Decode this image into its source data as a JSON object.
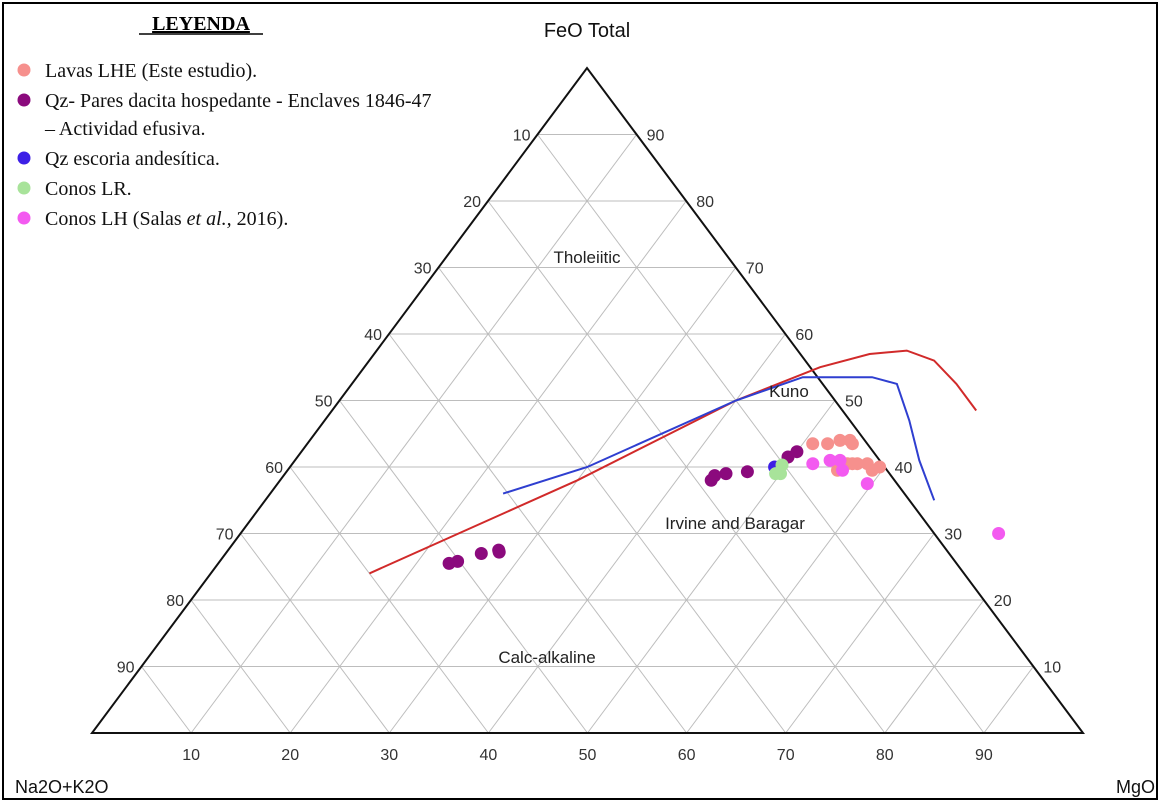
{
  "chart_data": {
    "type": "scatter",
    "subtype": "ternary-AFM",
    "apices": {
      "top": "FeO Total",
      "left": "Na2O+K2O",
      "right": "MgO"
    },
    "ticks": {
      "bottom": [
        "10",
        "20",
        "30",
        "40",
        "50",
        "60",
        "70",
        "80",
        "90"
      ],
      "left": [
        "10",
        "20",
        "30",
        "40",
        "50",
        "60",
        "70",
        "80",
        "90"
      ],
      "right": [
        "90",
        "80",
        "70",
        "60",
        "50",
        "40",
        "30",
        "20",
        "10"
      ]
    },
    "grid": true,
    "legend_position": "top-left",
    "legend": {
      "title": "LEYENDA",
      "entries": [
        {
          "label": "Lavas LHE (Este estudio).",
          "color": "#f6908d"
        },
        {
          "label": "Qz- Pares dacita hospedante - Enclaves 1846-47",
          "label2": "– Actividad efusiva.",
          "color": "#8b0a7d"
        },
        {
          "label": "Qz escoria andesítica.",
          "color": "#3d1fe6"
        },
        {
          "label": "Conos LR.",
          "color": "#a8e39a"
        },
        {
          "label_prefix": "Conos LH (Salas ",
          "label_italic": "et al.,",
          "label_suffix": " 2016).",
          "color": "#f35af0"
        }
      ]
    },
    "region_labels": [
      "Tholeiitic",
      "Calc-alkaline",
      "Kuno",
      "Irvine and Baragar"
    ],
    "boundaries": [
      {
        "name": "Kuno",
        "color": "#d12a2a",
        "points": [
          [
            16,
            24
          ],
          [
            30,
            38
          ],
          [
            40,
            50
          ],
          [
            46,
            55
          ],
          [
            50,
            57
          ],
          [
            53.5,
            57.5
          ],
          [
            57,
            56
          ],
          [
            61,
            52.5
          ],
          [
            65,
            48.5
          ]
        ]
      },
      {
        "name": "Irvine and Baragar",
        "color": "#2f3fd0",
        "points": [
          [
            23.5,
            36
          ],
          [
            30,
            40
          ],
          [
            40,
            50
          ],
          [
            45,
            53.5
          ],
          [
            52,
            53.5
          ],
          [
            55,
            52.5
          ],
          [
            59,
            47
          ],
          [
            63,
            41
          ],
          [
            67.5,
            35
          ]
        ]
      }
    ],
    "series": [
      {
        "color": "#f6908d",
        "points": [
          [
            51,
            43.5
          ],
          [
            52.5,
            43.5
          ],
          [
            53.5,
            44
          ],
          [
            54.5,
            44
          ],
          [
            55,
            43.5
          ],
          [
            56,
            40.5
          ],
          [
            57,
            40.5
          ],
          [
            58,
            40.5
          ],
          [
            59.5,
            40
          ],
          [
            59,
            39.5
          ],
          [
            55.5,
            39.5
          ],
          [
            56.5,
            40.5
          ]
        ]
      },
      {
        "color": "#8b0a7d",
        "points": [
          [
            23.3,
            25.5
          ],
          [
            24,
            25.8
          ],
          [
            25.8,
            27
          ],
          [
            27.3,
            27.5
          ],
          [
            27.5,
            27.2
          ],
          [
            43.5,
            38
          ],
          [
            43.5,
            38.7
          ],
          [
            44.5,
            39
          ],
          [
            46.5,
            39.3
          ],
          [
            49.5,
            41.5
          ],
          [
            50,
            42.3
          ]
        ]
      },
      {
        "color": "#3d1fe6",
        "points": [
          [
            48.9,
            40
          ]
        ]
      },
      {
        "color": "#a8e39a",
        "points": [
          [
            49.5,
            40.3
          ],
          [
            49.5,
            39
          ],
          [
            50,
            39
          ]
        ]
      },
      {
        "color": "#f35af0",
        "points": [
          [
            52.5,
            40.5
          ],
          [
            54,
            41
          ],
          [
            55,
            41
          ],
          [
            56,
            39.5
          ],
          [
            59.5,
            37.5
          ],
          [
            76.5,
            30
          ]
        ]
      }
    ]
  }
}
